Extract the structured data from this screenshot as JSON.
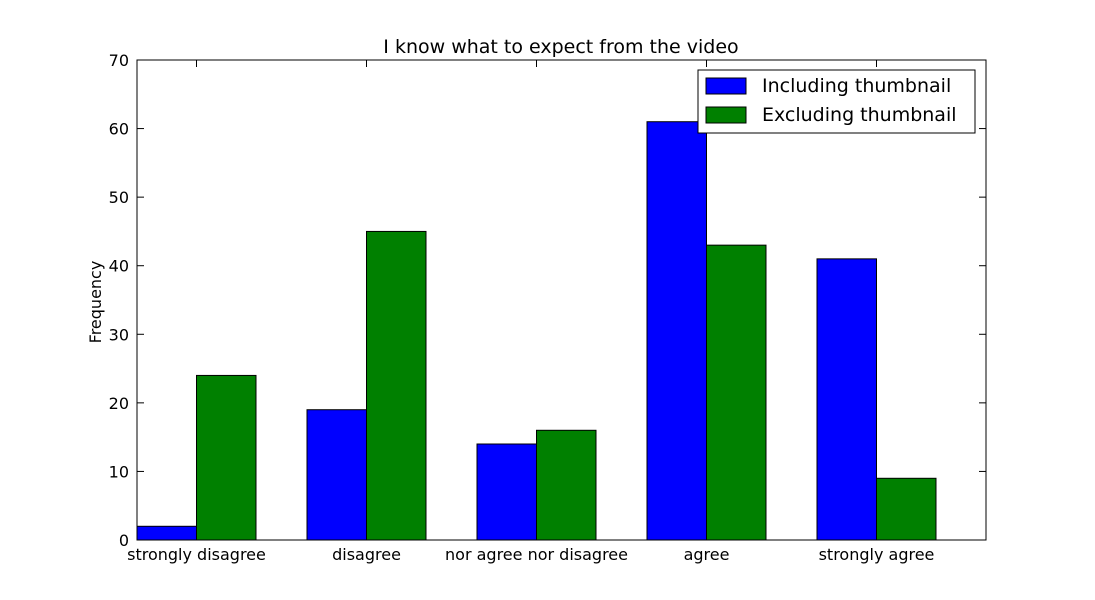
{
  "chart_data": {
    "type": "bar",
    "title": "I know what to expect from the video",
    "xlabel": "",
    "ylabel": "Frequency",
    "ylim": [
      0,
      70
    ],
    "yticks": [
      0,
      10,
      20,
      30,
      40,
      50,
      60,
      70
    ],
    "grid": false,
    "legend_position": "top-right",
    "categories": [
      "strongly disagree",
      "disagree",
      "nor agree nor disagree",
      "agree",
      "strongly agree"
    ],
    "series": [
      {
        "name": "Including thumbnail",
        "color": "#0000ff",
        "values": [
          2,
          19,
          14,
          61,
          41
        ]
      },
      {
        "name": "Excluding thumbnail",
        "color": "#008000",
        "values": [
          24,
          45,
          16,
          43,
          9
        ]
      }
    ]
  }
}
